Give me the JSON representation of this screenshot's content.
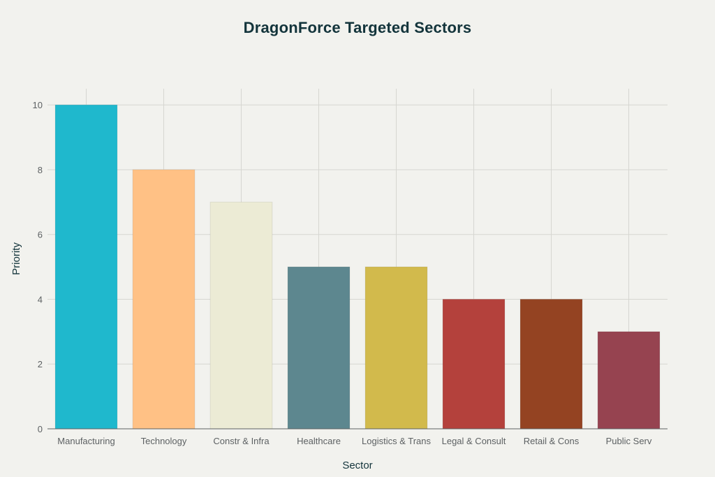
{
  "chart_data": {
    "type": "bar",
    "title": "DragonForce Targeted Sectors",
    "xlabel": "Sector",
    "ylabel": "Priority",
    "categories": [
      "Manufacturing",
      "Technology",
      "Constr & Infra",
      "Healthcare",
      "Logistics & Trans",
      "Legal & Consult",
      "Retail & Cons",
      "Public Serv"
    ],
    "values": [
      10,
      8,
      7,
      5,
      5,
      4,
      4,
      3
    ],
    "colors": [
      "#1fb8cd",
      "#ffc185",
      "#eceBd5",
      "#5d878f",
      "#d2ba4c",
      "#b4413c",
      "#944322",
      "#964350"
    ],
    "ylim": [
      0,
      10
    ],
    "yticks": [
      0,
      2,
      4,
      6,
      8,
      10
    ],
    "grid": true,
    "legend": "none"
  }
}
